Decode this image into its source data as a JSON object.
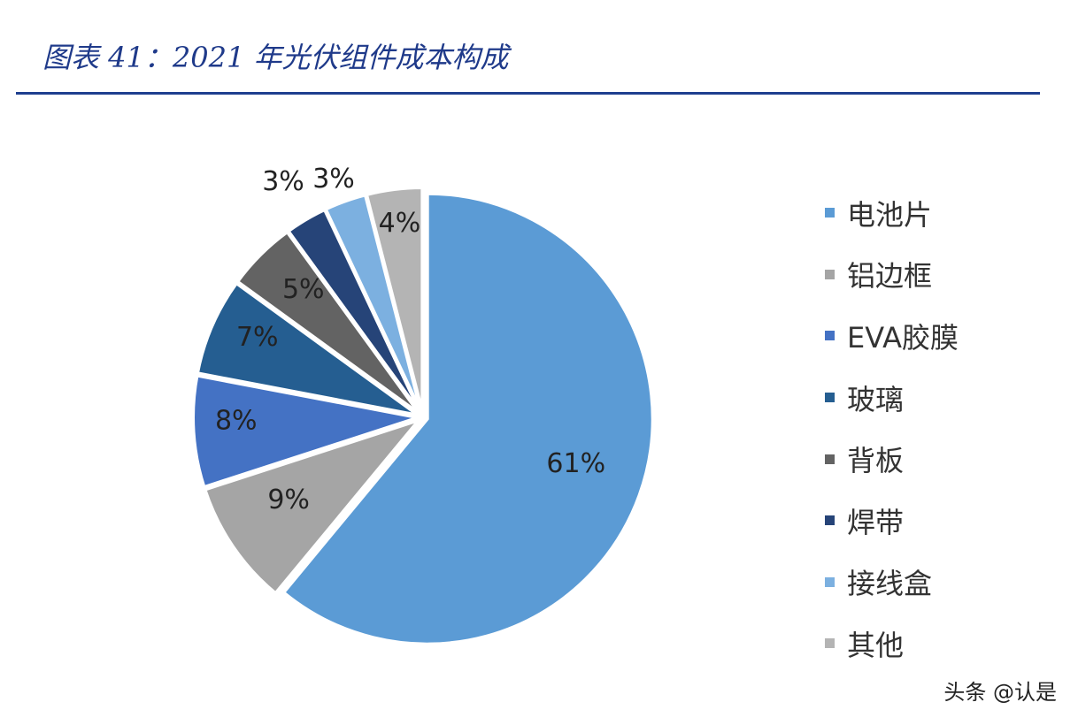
{
  "chart_data": {
    "type": "pie",
    "title": "图表 41：2021 年光伏组件成本构成",
    "start": "12 o'clock, clockwise",
    "legend_position": "right",
    "slices": [
      {
        "label": "电池片",
        "value": 61,
        "display": "61%",
        "color": "#5b9bd5"
      },
      {
        "label": "铝边框",
        "value": 9,
        "display": "9%",
        "color": "#a5a5a5"
      },
      {
        "label": "EVA胶膜",
        "value": 8,
        "display": "8%",
        "color": "#4472c4"
      },
      {
        "label": "玻璃",
        "value": 7,
        "display": "7%",
        "color": "#255e91"
      },
      {
        "label": "背板",
        "value": 5,
        "display": "5%",
        "color": "#636363"
      },
      {
        "label": "焊带",
        "value": 3,
        "display": "3%",
        "color": "#264478"
      },
      {
        "label": "接线盒",
        "value": 3,
        "display": "3%",
        "color": "#7cb0e0"
      },
      {
        "label": "其他",
        "value": 4,
        "display": "4%",
        "color": "#b4b4b4"
      }
    ]
  },
  "watermark": "头条 @认是"
}
